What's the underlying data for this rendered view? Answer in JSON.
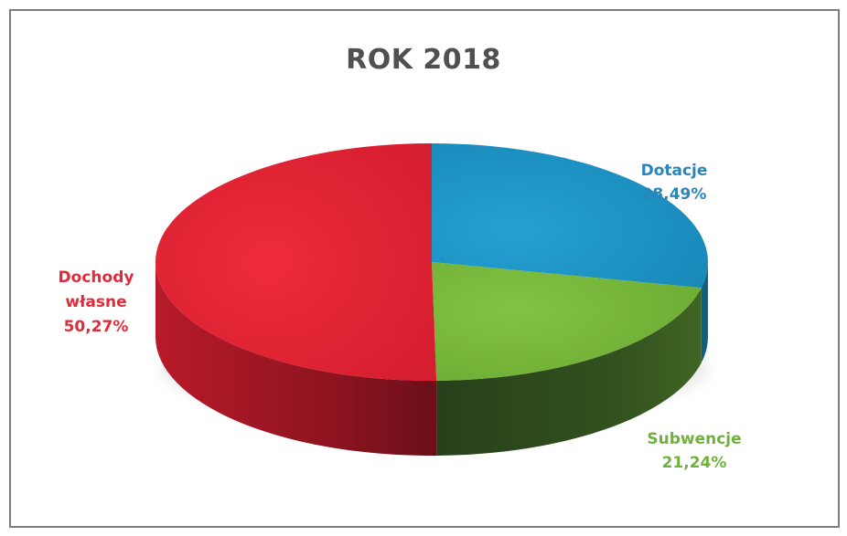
{
  "chart_data": {
    "type": "pie",
    "title": "ROK 2018",
    "slices": [
      {
        "label": "Dotacje",
        "value_text": "28,49%",
        "value": 28.49,
        "color": "#1e95c6",
        "side_color": "#135f80"
      },
      {
        "label": "Subwencje",
        "value_text": "21,24%",
        "value": 21.24,
        "color": "#77b83a",
        "side_color": "#2f4a1a"
      },
      {
        "label": "Dochody własne",
        "value_text": "50,27%",
        "value": 50.27,
        "color": "#e32334",
        "side_color": "#8f1420"
      }
    ]
  }
}
